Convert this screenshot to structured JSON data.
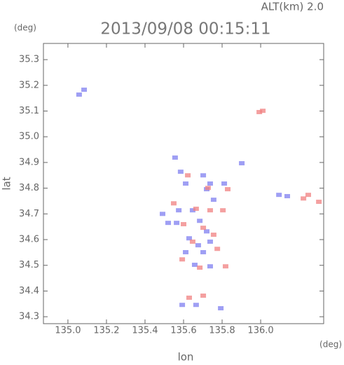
{
  "chart_data": {
    "type": "scatter",
    "title": "2013/09/08 00:15:11",
    "subtitle": "ALT(km) 2.0",
    "y_unit": "(deg)",
    "x_unit": "(deg)",
    "x_label": "lon",
    "y_label": "lat",
    "xlim": [
      134.873,
      136.327
    ],
    "ylim": [
      34.273,
      35.363
    ],
    "xticks": [
      {
        "value": 135,
        "label": "135.0"
      },
      135.2,
      135.4,
      135.6,
      135.8,
      {
        "value": 136,
        "label": "136.0"
      }
    ],
    "yticks": [
      34.3,
      34.4,
      34.5,
      34.6,
      34.7,
      34.8,
      34.9,
      {
        "value": 35,
        "label": "35.0"
      },
      35.1,
      35.2,
      35.3
    ],
    "series": [
      {
        "color": "#7f7ff0",
        "x": [
          135.084,
          135.058,
          135.556,
          135.585,
          135.611,
          135.738,
          135.902,
          136.095,
          136.138,
          135.647,
          135.684,
          135.629,
          135.738,
          135.611,
          135.702,
          135.658,
          135.738,
          135.564,
          135.593,
          135.665,
          135.793,
          135.72,
          135.52,
          135.575,
          135.702,
          135.811,
          135.756,
          135.676,
          135.72,
          135.491
        ],
        "values": [
          35.183,
          35.164,
          34.919,
          34.864,
          34.818,
          34.818,
          34.897,
          34.774,
          34.769,
          34.714,
          34.673,
          34.605,
          34.592,
          34.551,
          34.551,
          34.502,
          34.496,
          34.665,
          34.346,
          34.346,
          34.333,
          34.632,
          34.665,
          34.714,
          34.85,
          34.818,
          34.755,
          34.578,
          34.796,
          34.7
        ]
      },
      {
        "color": "#f08080",
        "x": [
          135.993,
          136.011,
          135.622,
          135.727,
          135.829,
          136.222,
          136.302,
          135.665,
          135.738,
          135.6,
          135.702,
          135.647,
          135.756,
          135.593,
          135.684,
          135.818,
          135.702,
          135.629,
          135.804,
          135.549,
          135.775,
          136.247
        ],
        "values": [
          35.096,
          35.101,
          34.85,
          34.801,
          34.796,
          34.76,
          34.747,
          34.72,
          34.714,
          34.66,
          34.646,
          34.592,
          34.619,
          34.523,
          34.491,
          34.496,
          34.382,
          34.374,
          34.714,
          34.741,
          34.564,
          34.774
        ]
      }
    ]
  }
}
